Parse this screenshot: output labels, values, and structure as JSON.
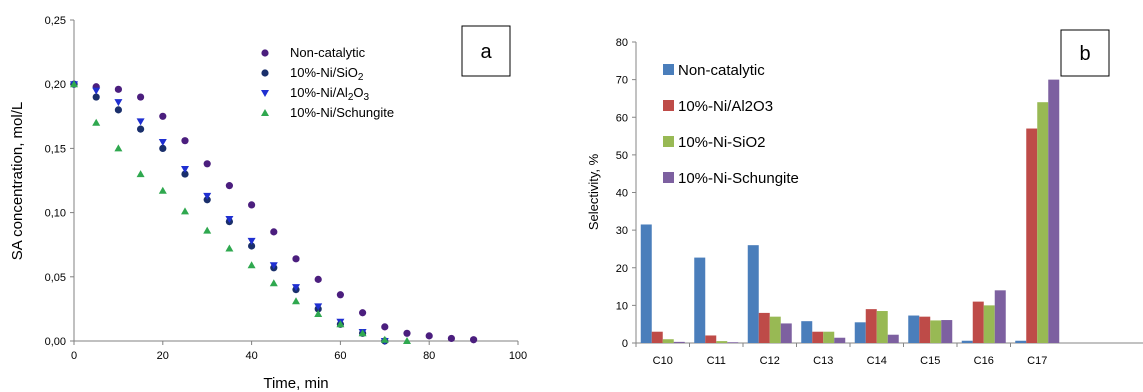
{
  "chart_data": [
    {
      "type": "scatter",
      "panel_label": "a",
      "title": "",
      "xlabel": "Time, min",
      "ylabel": "SA concentration, mol/L",
      "xlim": [
        0,
        100
      ],
      "ylim": [
        0,
        0.25
      ],
      "xticks": [
        "0",
        "20",
        "40",
        "60",
        "80",
        "100"
      ],
      "yticks": [
        "0,00",
        "0,05",
        "0,10",
        "0,15",
        "0,20",
        "0,25"
      ],
      "legend_position": "top-right",
      "series": [
        {
          "name": "Non-catalytic",
          "marker": "circle",
          "color": "#4b1e7e",
          "x": [
            0,
            5,
            10,
            15,
            20,
            25,
            30,
            35,
            40,
            45,
            50,
            55,
            60,
            65,
            70,
            75,
            80,
            85,
            90
          ],
          "y": [
            0.2,
            0.198,
            0.196,
            0.19,
            0.175,
            0.156,
            0.138,
            0.121,
            0.106,
            0.085,
            0.064,
            0.048,
            0.036,
            0.022,
            0.011,
            0.006,
            0.004,
            0.002,
            0.001
          ]
        },
        {
          "name": "10%-Ni/SiO2",
          "marker": "circle",
          "color": "#1a2f6b",
          "x": [
            0,
            5,
            10,
            15,
            20,
            25,
            30,
            35,
            40,
            45,
            50,
            55,
            60,
            65,
            70
          ],
          "y": [
            0.2,
            0.19,
            0.18,
            0.165,
            0.15,
            0.13,
            0.11,
            0.093,
            0.074,
            0.057,
            0.04,
            0.025,
            0.013,
            0.006,
            0.0
          ]
        },
        {
          "name": "10%-Ni/Al2O3",
          "marker": "triangle-down",
          "color": "#1f2fd1",
          "x": [
            0,
            5,
            10,
            15,
            20,
            25,
            30,
            35,
            40,
            45,
            50,
            55,
            60,
            65,
            70
          ],
          "y": [
            0.2,
            0.195,
            0.186,
            0.171,
            0.155,
            0.134,
            0.113,
            0.095,
            0.078,
            0.059,
            0.042,
            0.027,
            0.015,
            0.007,
            0.0
          ]
        },
        {
          "name": "10%-Ni/Schungite",
          "marker": "triangle-up",
          "color": "#2fa84f",
          "x": [
            0,
            5,
            10,
            15,
            20,
            25,
            30,
            35,
            40,
            45,
            50,
            55,
            60,
            65,
            70,
            75
          ],
          "y": [
            0.2,
            0.17,
            0.15,
            0.13,
            0.117,
            0.101,
            0.086,
            0.072,
            0.059,
            0.045,
            0.031,
            0.021,
            0.013,
            0.006,
            0.001,
            0.0
          ]
        }
      ]
    },
    {
      "type": "bar",
      "panel_label": "b",
      "title": "",
      "xlabel": "",
      "ylabel": "Selectivity, %",
      "ylim": [
        0,
        80
      ],
      "yticks": [
        "0",
        "10",
        "20",
        "30",
        "40",
        "50",
        "60",
        "70",
        "80"
      ],
      "categories": [
        "C10",
        "C11",
        "C12",
        "C13",
        "C14",
        "C15",
        "C16",
        "C17"
      ],
      "legend_position": "top-left",
      "series": [
        {
          "name": "Non-catalytic",
          "color": "#4a7ebb",
          "values": [
            31.5,
            22.7,
            26,
            5.8,
            5.5,
            7.3,
            0.6,
            0.6
          ]
        },
        {
          "name": "10%-Ni/Al2O3",
          "color": "#be4b48",
          "values": [
            3,
            2,
            8,
            3,
            9,
            7,
            11,
            57
          ]
        },
        {
          "name": "10%-Ni-SiO2",
          "color": "#98b954",
          "values": [
            1,
            0.5,
            7,
            3,
            8.5,
            6,
            10,
            64
          ]
        },
        {
          "name": "10%-Ni-Schungite",
          "color": "#7d60a0",
          "values": [
            0.3,
            0.2,
            5.2,
            1.4,
            2.2,
            6.1,
            14,
            70
          ]
        }
      ]
    }
  ]
}
